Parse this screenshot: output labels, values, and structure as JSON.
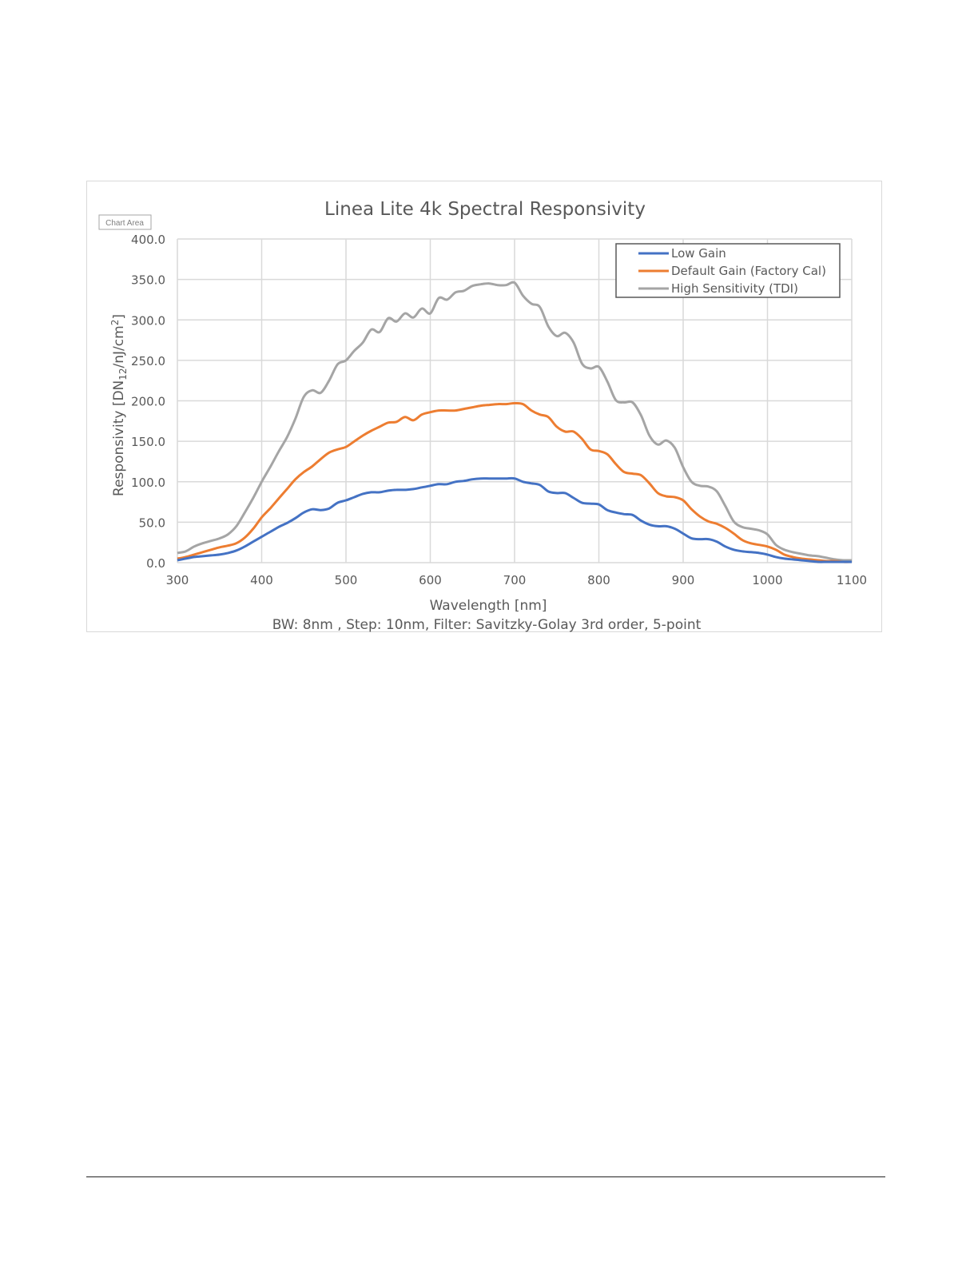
{
  "chart_area_tag": "Chart Area",
  "chart_data": {
    "type": "line",
    "title": "Linea Lite 4k Spectral Responsivity",
    "xlabel": "Wavelength [nm]",
    "ylabel_parts": [
      "Responsivity [DN",
      "12",
      "/nJ/cm",
      "2",
      "]"
    ],
    "caption": "BW: 8nm , Step: 10nm, Filter: Savitzky-Golay 3rd order, 5-point",
    "xlim": [
      300,
      1100
    ],
    "ylim": [
      0,
      400
    ],
    "x_ticks": [
      "300",
      "400",
      "500",
      "600",
      "700",
      "800",
      "900",
      "1000",
      "1100"
    ],
    "y_ticks": [
      "0.0",
      "50.0",
      "100.0",
      "150.0",
      "200.0",
      "250.0",
      "300.0",
      "350.0",
      "400.0"
    ],
    "grid": true,
    "legend_position": "top-right",
    "x": [
      300,
      310,
      320,
      330,
      340,
      350,
      360,
      370,
      380,
      390,
      400,
      410,
      420,
      430,
      440,
      450,
      460,
      470,
      480,
      490,
      500,
      510,
      520,
      530,
      540,
      550,
      560,
      570,
      580,
      590,
      600,
      610,
      620,
      630,
      640,
      650,
      660,
      670,
      680,
      690,
      700,
      710,
      720,
      730,
      740,
      750,
      760,
      770,
      780,
      790,
      800,
      810,
      820,
      830,
      840,
      850,
      860,
      870,
      880,
      890,
      900,
      910,
      920,
      930,
      940,
      950,
      960,
      970,
      980,
      990,
      1000,
      1010,
      1020,
      1030,
      1040,
      1050,
      1060,
      1070,
      1080,
      1090,
      1100
    ],
    "series": [
      {
        "name": "Low Gain",
        "color": "#4472c4",
        "values": [
          3,
          5,
          7,
          8,
          9,
          10,
          12,
          15,
          20,
          26,
          32,
          38,
          44,
          49,
          55,
          62,
          66,
          65,
          67,
          74,
          77,
          81,
          85,
          87,
          87,
          89,
          90,
          90,
          91,
          93,
          95,
          97,
          97,
          100,
          101,
          103,
          104,
          104,
          104,
          104,
          104,
          100,
          98,
          96,
          88,
          86,
          86,
          80,
          74,
          73,
          72,
          65,
          62,
          60,
          59,
          52,
          47,
          45,
          45,
          42,
          36,
          30,
          29,
          29,
          26,
          20,
          16,
          14,
          13,
          12,
          10,
          7,
          5,
          4,
          3,
          2,
          1,
          1,
          1,
          1,
          1
        ]
      },
      {
        "name": "Default Gain (Factory Cal)",
        "color": "#ed7d31",
        "values": [
          5,
          7,
          10,
          13,
          16,
          19,
          21,
          24,
          31,
          42,
          56,
          67,
          79,
          91,
          103,
          112,
          119,
          128,
          136,
          140,
          143,
          150,
          157,
          163,
          168,
          173,
          174,
          180,
          176,
          183,
          186,
          188,
          188,
          188,
          190,
          192,
          194,
          195,
          196,
          196,
          197,
          196,
          188,
          183,
          180,
          168,
          162,
          162,
          153,
          140,
          138,
          134,
          122,
          112,
          110,
          108,
          98,
          86,
          82,
          81,
          77,
          66,
          57,
          51,
          48,
          43,
          36,
          28,
          24,
          22,
          20,
          16,
          10,
          7,
          5,
          4,
          3,
          2,
          2,
          1,
          1
        ]
      },
      {
        "name": "High Sensitivity (TDI)",
        "color": "#a5a5a5",
        "values": [
          12,
          14,
          20,
          24,
          27,
          30,
          35,
          45,
          62,
          80,
          100,
          118,
          137,
          155,
          178,
          205,
          213,
          210,
          225,
          245,
          250,
          262,
          272,
          288,
          285,
          302,
          298,
          308,
          303,
          314,
          308,
          327,
          325,
          334,
          336,
          342,
          344,
          345,
          343,
          343,
          346,
          330,
          320,
          316,
          292,
          280,
          284,
          272,
          246,
          240,
          242,
          224,
          201,
          198,
          198,
          182,
          157,
          146,
          151,
          142,
          118,
          100,
          95,
          94,
          88,
          70,
          51,
          44,
          42,
          40,
          35,
          22,
          16,
          13,
          11,
          9,
          8,
          6,
          4,
          3,
          3
        ]
      }
    ]
  }
}
